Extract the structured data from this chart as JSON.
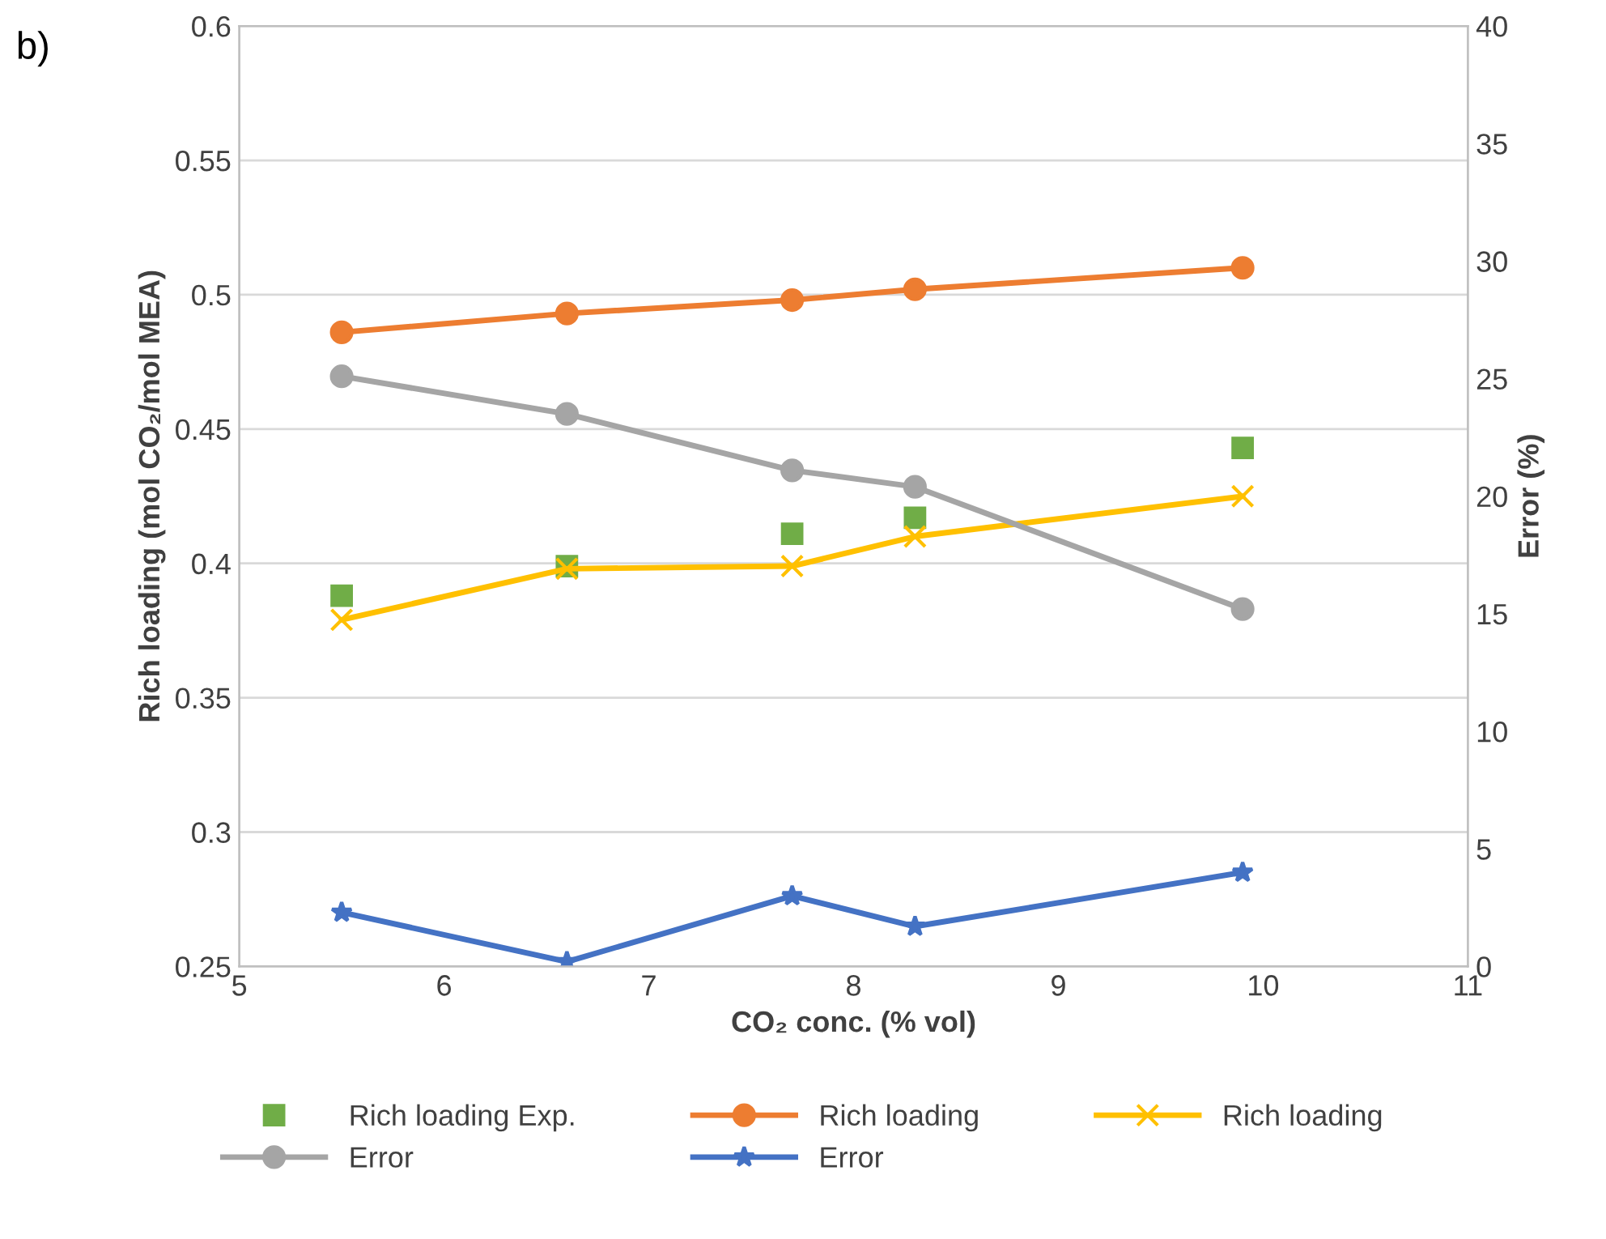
{
  "chart_data": {
    "type": "line",
    "xlabel": "CO₂ conc. (% vol)",
    "ylabel": "Rich loading (mol CO₂/mol MEA)",
    "y2label": "Error (%)",
    "annotations": [
      "b)"
    ],
    "x": [
      5.5,
      6.6,
      7.7,
      8.3,
      9.9
    ],
    "series": [
      {
        "name": "Rich loading Exp.",
        "type": "scatter",
        "marker": "square",
        "color": "#70ad47",
        "values": [
          0.388,
          0.399,
          0.411,
          0.417,
          0.443
        ]
      },
      {
        "name": "Rich loading",
        "marker": "circle",
        "color": "#ed7d31",
        "values": [
          0.486,
          0.493,
          0.498,
          0.502,
          0.51
        ]
      },
      {
        "name": "Rich loading",
        "marker": "cross",
        "color": "#ffc000",
        "values": [
          0.379,
          0.398,
          0.399,
          0.41,
          0.425
        ]
      },
      {
        "name": "Error",
        "marker": "circle",
        "color": "#a5a5a5",
        "axis": "y2",
        "values": [
          25.1,
          23.5,
          21.1,
          20.4,
          15.2
        ]
      },
      {
        "name": "Error",
        "marker": "star",
        "color": "#4472c4",
        "axis": "y2",
        "values": [
          2.3,
          0.2,
          3.0,
          1.7,
          4.0
        ]
      }
    ],
    "xlim": [
      5,
      11
    ],
    "xticks": [
      5,
      6,
      7,
      8,
      9,
      10,
      11
    ],
    "ylim": [
      0.25,
      0.6
    ],
    "yticks": [
      0.25,
      0.3,
      0.35,
      0.4,
      0.45,
      0.5,
      0.55,
      0.6
    ],
    "y2lim": [
      0,
      40
    ],
    "y2ticks": [
      0,
      5,
      10,
      15,
      20,
      25,
      30,
      35,
      40
    ],
    "grid": "y",
    "legend": "bottom",
    "line_style": "solid"
  }
}
